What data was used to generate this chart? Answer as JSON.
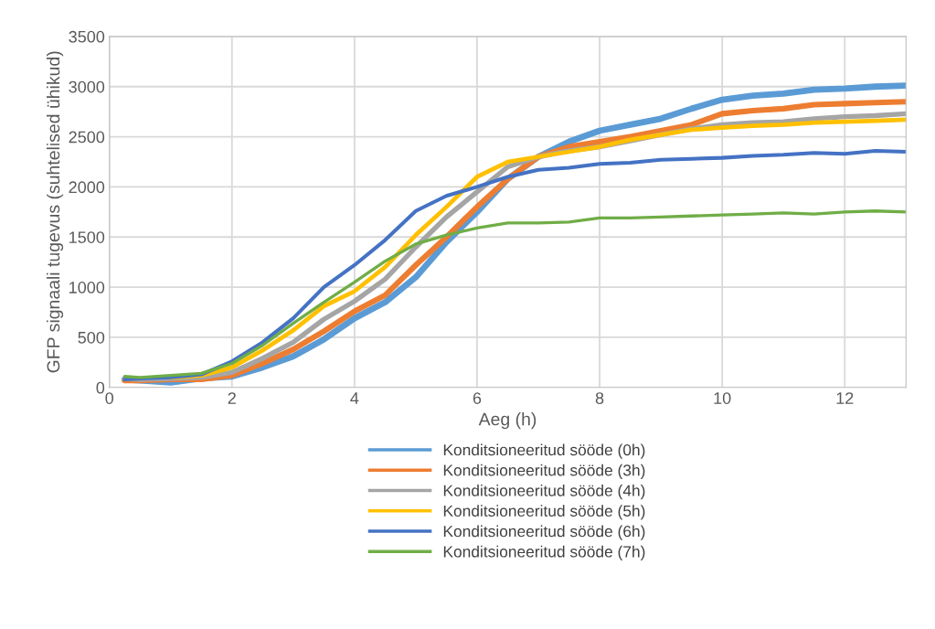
{
  "chart_data": {
    "type": "line",
    "xlabel": "Aeg (h)",
    "ylabel": "GFP signaali tugevus (suhtelised ühikud)",
    "x": [
      0.25,
      0.5,
      1,
      1.5,
      2,
      2.5,
      3,
      3.5,
      4,
      4.5,
      5,
      5.5,
      6,
      6.5,
      7,
      7.5,
      8,
      8.5,
      9,
      9.5,
      10,
      10.5,
      11,
      11.5,
      12,
      12.5,
      13
    ],
    "series": [
      {
        "name": "Konditsioneeritud sööde (0h)",
        "color": "#5b9bd5",
        "values": [
          80,
          70,
          50,
          90,
          110,
          200,
          310,
          480,
          690,
          850,
          1100,
          1450,
          1750,
          2080,
          2300,
          2450,
          2560,
          2620,
          2680,
          2780,
          2870,
          2910,
          2930,
          2970,
          2980,
          3000,
          3010
        ]
      },
      {
        "name": "Konditsioneeritud sööde (3h)",
        "color": "#ed7d31",
        "values": [
          70,
          70,
          80,
          80,
          120,
          240,
          380,
          560,
          760,
          920,
          1220,
          1500,
          1800,
          2080,
          2300,
          2400,
          2450,
          2500,
          2560,
          2620,
          2730,
          2760,
          2780,
          2820,
          2830,
          2840,
          2850
        ]
      },
      {
        "name": "Konditsioneeritud sööde (4h)",
        "color": "#a5a5a5",
        "values": [
          90,
          80,
          90,
          100,
          150,
          290,
          450,
          680,
          860,
          1080,
          1400,
          1700,
          1950,
          2200,
          2300,
          2360,
          2400,
          2460,
          2520,
          2580,
          2620,
          2640,
          2650,
          2680,
          2700,
          2710,
          2730
        ]
      },
      {
        "name": "Konditsioneeritud sööde (5h)",
        "color": "#ffc000",
        "values": [
          null,
          null,
          100,
          120,
          200,
          370,
          570,
          810,
          960,
          1200,
          1520,
          1800,
          2100,
          2250,
          2300,
          2350,
          2400,
          2470,
          2520,
          2570,
          2590,
          2610,
          2620,
          2640,
          2650,
          2660,
          2670
        ]
      },
      {
        "name": "Konditsioneeritud sööde (6h)",
        "color": "#4472c4",
        "values": [
          80,
          90,
          100,
          130,
          260,
          450,
          690,
          1000,
          1220,
          1470,
          1760,
          1910,
          2000,
          2100,
          2170,
          2190,
          2230,
          2240,
          2270,
          2280,
          2290,
          2310,
          2320,
          2340,
          2330,
          2360,
          2350
        ]
      },
      {
        "name": "Konditsioneeritud sööde (7h)",
        "color": "#70ad47",
        "values": [
          110,
          100,
          120,
          140,
          240,
          420,
          640,
          850,
          1050,
          1260,
          1430,
          1520,
          1590,
          1640,
          1640,
          1650,
          1690,
          1690,
          1700,
          1710,
          1720,
          1730,
          1740,
          1730,
          1750,
          1760,
          1750
        ]
      }
    ],
    "xlim": [
      0,
      13
    ],
    "xticks": [
      0,
      2,
      4,
      6,
      8,
      10,
      12
    ],
    "ylim": [
      0,
      3500
    ],
    "yticks": [
      0,
      500,
      1000,
      1500,
      2000,
      2500,
      3000,
      3500
    ],
    "grid": true,
    "legend": "bottom",
    "marker": "none",
    "line_style": "solid"
  }
}
